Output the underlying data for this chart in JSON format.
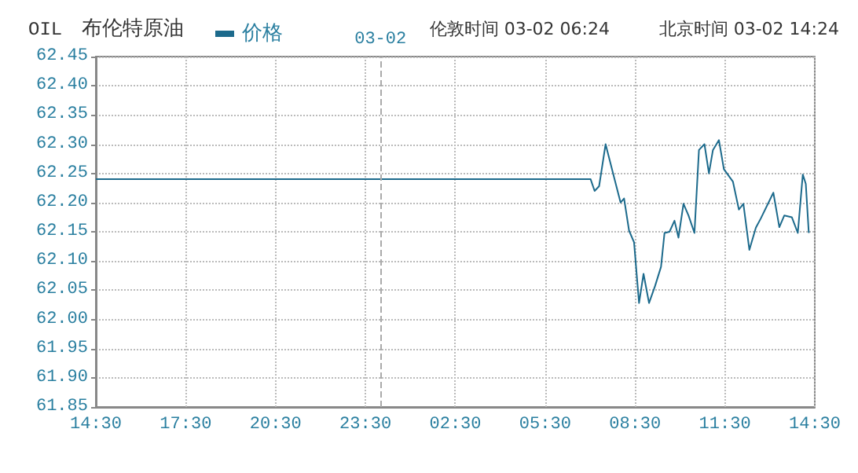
{
  "chart_data": {
    "type": "line",
    "title": "OIL",
    "subtitle": "布伦特原油",
    "annotations": [
      "伦敦时间 03-02 06:24",
      "北京时间 03-02 14:24"
    ],
    "x": [
      "--03-01T14:30",
      "--03-02T07:01",
      "--03-02T07:09",
      "--03-02T07:18",
      "--03-02T07:31",
      "--03-02T07:46",
      "--03-02T08:01",
      "--03-02T08:08",
      "--03-02T08:18",
      "--03-02T08:28",
      "--03-02T08:38",
      "--03-02T08:47",
      "--03-02T08:58",
      "--03-02T09:10",
      "--03-02T09:22",
      "--03-02T09:29",
      "--03-02T09:39",
      "--03-02T09:49",
      "--03-02T09:57",
      "--03-02T10:07",
      "--03-02T10:17",
      "--03-02T10:29",
      "--03-02T10:38",
      "--03-02T10:49",
      "--03-02T10:58",
      "--03-02T11:06",
      "--03-02T11:18",
      "--03-02T11:28",
      "--03-02T11:46",
      "--03-02T11:58",
      "--03-02T12:07",
      "--03-02T12:19",
      "--03-02T12:32",
      "--03-02T12:42",
      "--03-02T13:07",
      "--03-02T13:19",
      "--03-02T13:29",
      "--03-02T13:44",
      "--03-02T13:56",
      "--03-02T14:06",
      "--03-02T14:12",
      "--03-02T14:18"
    ],
    "series": [
      {
        "name": "价格",
        "color": "#1c6a8c",
        "values": [
          62.24,
          62.24,
          62.22,
          62.228,
          62.3,
          62.25,
          62.2,
          62.207,
          62.152,
          62.132,
          62.028,
          62.078,
          62.028,
          62.057,
          62.09,
          62.148,
          62.15,
          62.169,
          62.14,
          62.198,
          62.178,
          62.148,
          62.29,
          62.3,
          62.25,
          62.29,
          62.307,
          62.257,
          62.236,
          62.188,
          62.198,
          62.119,
          62.157,
          62.173,
          62.217,
          62.158,
          62.178,
          62.175,
          62.148,
          62.248,
          62.232,
          62.148
        ]
      }
    ],
    "xlim": [
      "--03-01T14:30",
      "--03-02T14:30"
    ],
    "xticks": [
      {
        "value": "--03-01T14:30",
        "label": "14:30"
      },
      {
        "value": "--03-01T17:30",
        "label": "17:30"
      },
      {
        "value": "--03-01T20:30",
        "label": "20:30"
      },
      {
        "value": "--03-01T23:30",
        "label": "23:30"
      },
      {
        "value": "--03-02T02:30",
        "label": "02:30"
      },
      {
        "value": "--03-02T05:30",
        "label": "05:30"
      },
      {
        "value": "--03-02T08:30",
        "label": "08:30"
      },
      {
        "value": "--03-02T11:30",
        "label": "11:30"
      },
      {
        "value": "--03-02T14:30",
        "label": "14:30"
      }
    ],
    "ylim": [
      61.85,
      62.45
    ],
    "yticks": [
      {
        "value": 61.85,
        "label": "61.85"
      },
      {
        "value": 61.9,
        "label": "61.90"
      },
      {
        "value": 61.95,
        "label": "61.95"
      },
      {
        "value": 62,
        "label": "62.00"
      },
      {
        "value": 62.05,
        "label": "62.05"
      },
      {
        "value": 62.1,
        "label": "62.10"
      },
      {
        "value": 62.15,
        "label": "62.15"
      },
      {
        "value": 62.2,
        "label": "62.20"
      },
      {
        "value": 62.25,
        "label": "62.25"
      },
      {
        "value": 62.3,
        "label": "62.30"
      },
      {
        "value": 62.35,
        "label": "62.35"
      },
      {
        "value": 62.4,
        "label": "62.40"
      },
      {
        "value": 62.45,
        "label": "62.45"
      }
    ],
    "ref_lines": [
      {
        "axis": "x",
        "value": "--03-02T00:00",
        "label": "03-02",
        "color": "#aaaaaa",
        "line_style": "dashed"
      }
    ],
    "grid": true,
    "legend": "top",
    "marker": "none",
    "line_style": "solid"
  }
}
